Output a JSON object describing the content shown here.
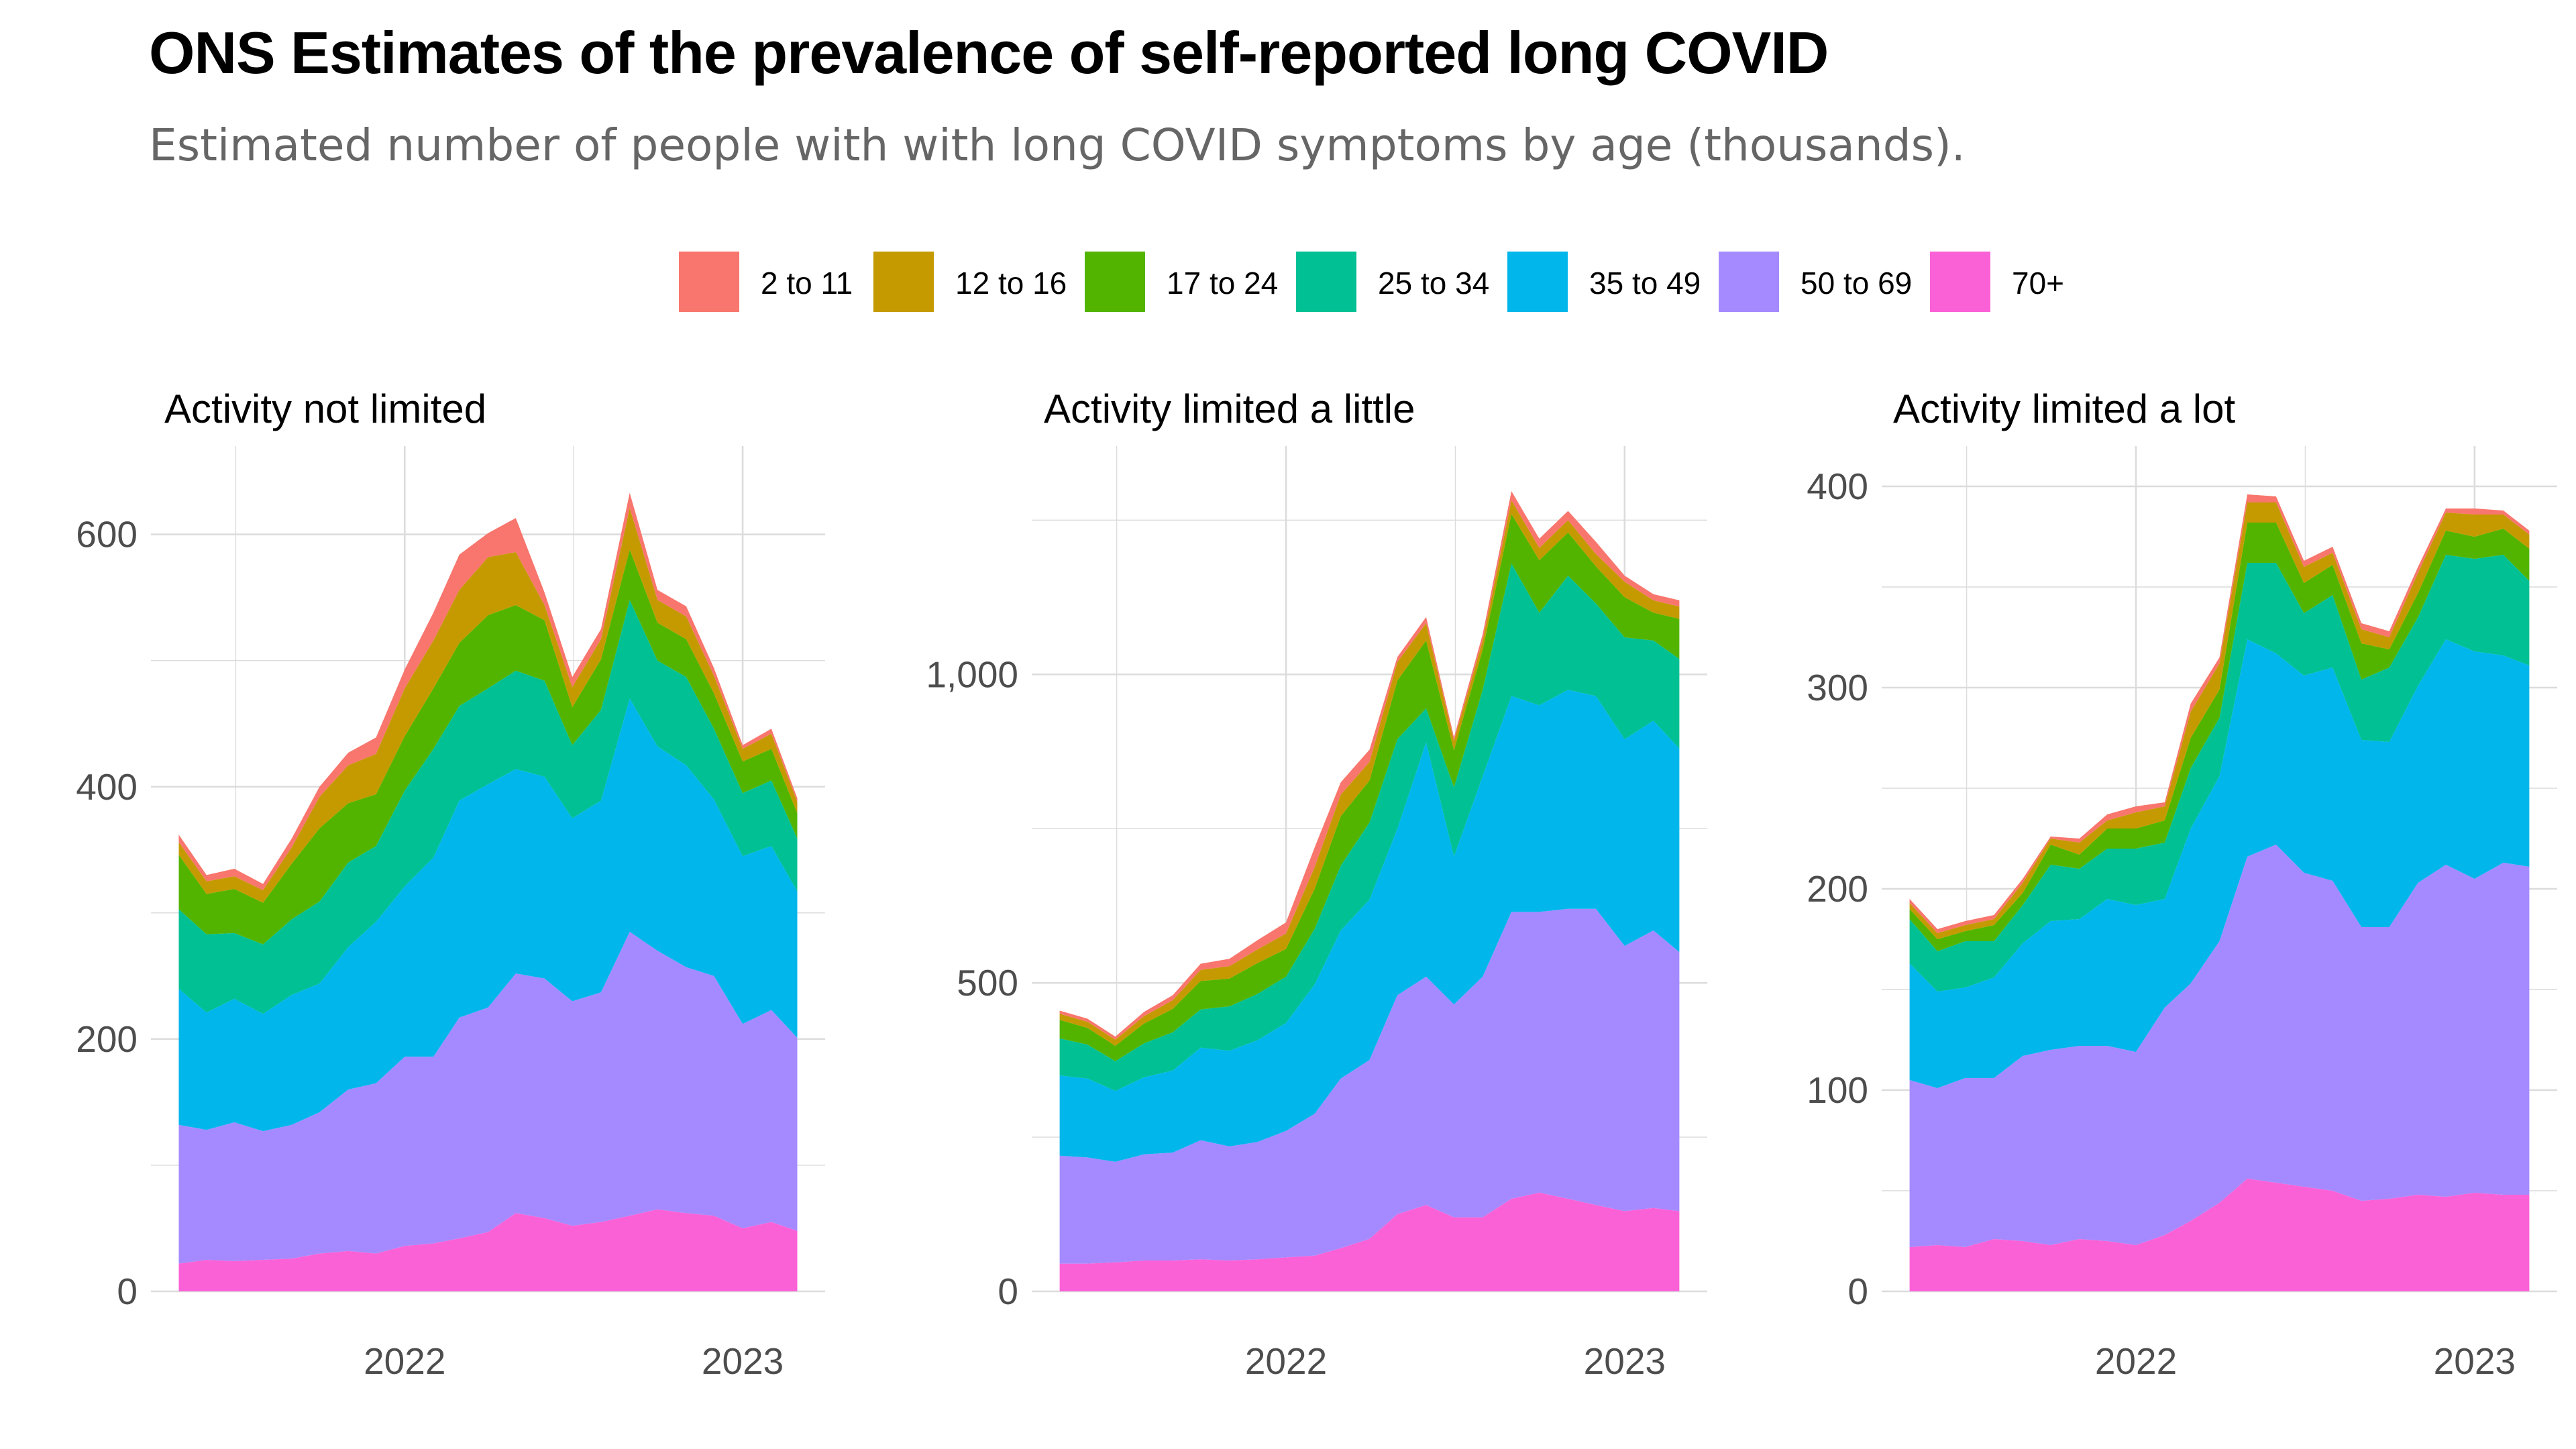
{
  "title": "ONS Estimates of the prevalence of self-reported long COVID",
  "subtitle": "Estimated number of people with with long COVID symptoms by age (thousands).",
  "legend": {
    "position": "top",
    "items": [
      {
        "label": "2 to 11",
        "color": "#F8766D"
      },
      {
        "label": "12 to 16",
        "color": "#C49A00"
      },
      {
        "label": "17 to 24",
        "color": "#53B400"
      },
      {
        "label": "25 to 34",
        "color": "#00C094"
      },
      {
        "label": "35 to 49",
        "color": "#00B6EB"
      },
      {
        "label": "50 to 69",
        "color": "#A58AFF"
      },
      {
        "label": "70+",
        "color": "#FB61D7"
      }
    ]
  },
  "chart_data": [
    {
      "type": "area",
      "stacked": true,
      "title": "Activity not limited",
      "x": [
        "2021-05-02",
        "2021-06-01",
        "2021-07-01",
        "2021-08-01",
        "2021-09-01",
        "2021-10-01",
        "2021-11-01",
        "2021-12-01",
        "2022-01-01",
        "2022-02-01",
        "2022-03-01",
        "2022-04-01",
        "2022-05-01",
        "2022-06-01",
        "2022-07-01",
        "2022-08-01",
        "2022-09-01",
        "2022-10-01",
        "2022-11-01",
        "2022-12-01",
        "2023-01-01",
        "2023-02-01",
        "2023-03-01"
      ],
      "xticks": [
        "2022",
        "2023"
      ],
      "ylim": [
        0,
        670
      ],
      "yticks": [
        "0",
        "200",
        "400",
        "600"
      ],
      "grid": true,
      "series": [
        {
          "name": "70+",
          "values": [
            22,
            25,
            24,
            25,
            26,
            30,
            32,
            30,
            36,
            38,
            42,
            47,
            62,
            58,
            52,
            55,
            60,
            65,
            62,
            60,
            50,
            55,
            48
          ]
        },
        {
          "name": "50 to 69",
          "values": [
            110,
            103,
            110,
            102,
            106,
            112,
            128,
            135,
            150,
            148,
            175,
            178,
            190,
            190,
            178,
            182,
            225,
            205,
            195,
            190,
            162,
            168,
            153
          ]
        },
        {
          "name": "35 to 49",
          "values": [
            108,
            93,
            98,
            93,
            103,
            102,
            113,
            128,
            135,
            158,
            172,
            177,
            162,
            160,
            145,
            152,
            185,
            162,
            160,
            140,
            133,
            130,
            116
          ]
        },
        {
          "name": "25 to 34",
          "values": [
            63,
            62,
            52,
            55,
            60,
            65,
            67,
            60,
            76,
            86,
            75,
            76,
            78,
            76,
            58,
            72,
            78,
            68,
            70,
            56,
            50,
            52,
            42
          ]
        },
        {
          "name": "17 to 24",
          "values": [
            43,
            32,
            35,
            33,
            44,
            58,
            47,
            41,
            43,
            48,
            50,
            58,
            52,
            48,
            30,
            40,
            40,
            30,
            30,
            28,
            25,
            25,
            20
          ]
        },
        {
          "name": "12 to 16",
          "values": [
            10,
            10,
            10,
            10,
            13,
            25,
            30,
            32,
            38,
            38,
            42,
            46,
            42,
            12,
            16,
            16,
            33,
            18,
            18,
            14,
            10,
            12,
            9
          ]
        },
        {
          "name": "2 to 11",
          "values": [
            6,
            5,
            6,
            5,
            7,
            8,
            10,
            13,
            15,
            22,
            28,
            19,
            27,
            10,
            8,
            8,
            12,
            8,
            8,
            6,
            3,
            4,
            3
          ]
        }
      ]
    },
    {
      "type": "area",
      "stacked": true,
      "title": "Activity limited a little",
      "x": [
        "2021-05-02",
        "2021-06-01",
        "2021-07-01",
        "2021-08-01",
        "2021-09-01",
        "2021-10-01",
        "2021-11-01",
        "2021-12-01",
        "2022-01-01",
        "2022-02-01",
        "2022-03-01",
        "2022-04-01",
        "2022-05-01",
        "2022-06-01",
        "2022-07-01",
        "2022-08-01",
        "2022-09-01",
        "2022-10-01",
        "2022-11-01",
        "2022-12-01",
        "2023-01-01",
        "2023-02-01",
        "2023-03-01"
      ],
      "xticks": [
        "2022",
        "2023"
      ],
      "ylim": [
        0,
        1370
      ],
      "yticks": [
        "0",
        "500",
        "1,000"
      ],
      "grid": true,
      "series": [
        {
          "name": "70+",
          "values": [
            45,
            45,
            47,
            50,
            50,
            52,
            50,
            52,
            55,
            58,
            70,
            85,
            125,
            140,
            120,
            120,
            150,
            160,
            150,
            140,
            130,
            135,
            130
          ]
        },
        {
          "name": "50 to 69",
          "values": [
            175,
            172,
            163,
            172,
            175,
            193,
            185,
            190,
            205,
            230,
            275,
            290,
            355,
            370,
            345,
            390,
            465,
            455,
            470,
            480,
            430,
            450,
            420
          ]
        },
        {
          "name": "35 to 49",
          "values": [
            130,
            128,
            115,
            125,
            133,
            150,
            155,
            165,
            175,
            210,
            240,
            260,
            270,
            380,
            240,
            325,
            350,
            335,
            355,
            345,
            335,
            340,
            330
          ]
        },
        {
          "name": "25 to 34",
          "values": [
            60,
            55,
            48,
            55,
            62,
            62,
            72,
            75,
            75,
            90,
            105,
            125,
            145,
            55,
            112,
            140,
            215,
            150,
            185,
            150,
            165,
            130,
            145
          ]
        },
        {
          "name": "17 to 24",
          "values": [
            30,
            27,
            25,
            32,
            38,
            46,
            45,
            50,
            45,
            65,
            80,
            68,
            95,
            110,
            60,
            65,
            80,
            85,
            70,
            60,
            65,
            45,
            65
          ]
        },
        {
          "name": "12 to 16",
          "values": [
            10,
            10,
            10,
            12,
            14,
            18,
            20,
            22,
            25,
            35,
            35,
            30,
            30,
            28,
            15,
            15,
            22,
            20,
            20,
            20,
            25,
            20,
            20
          ]
        },
        {
          "name": "2 to 11",
          "values": [
            5,
            5,
            5,
            7,
            8,
            10,
            12,
            15,
            18,
            32,
            20,
            20,
            8,
            10,
            6,
            10,
            15,
            15,
            15,
            20,
            10,
            10,
            10
          ]
        }
      ]
    },
    {
      "type": "area",
      "stacked": true,
      "title": "Activity limited a lot",
      "x": [
        "2021-05-02",
        "2021-06-01",
        "2021-07-01",
        "2021-08-01",
        "2021-09-01",
        "2021-10-01",
        "2021-11-01",
        "2021-12-01",
        "2022-01-01",
        "2022-02-01",
        "2022-03-01",
        "2022-04-01",
        "2022-05-01",
        "2022-06-01",
        "2022-07-01",
        "2022-08-01",
        "2022-09-01",
        "2022-10-01",
        "2022-11-01",
        "2022-12-01",
        "2023-01-01",
        "2023-02-01",
        "2023-03-01"
      ],
      "xticks": [
        "2022",
        "2023"
      ],
      "ylim": [
        0,
        420
      ],
      "yticks": [
        "0",
        "100",
        "200",
        "300",
        "400"
      ],
      "grid": true,
      "series": [
        {
          "name": "70+",
          "values": [
            22,
            23,
            22,
            26,
            25,
            23,
            26,
            25,
            23,
            28,
            35,
            44,
            56,
            54,
            52,
            50,
            45,
            46,
            48,
            47,
            49,
            48,
            48
          ]
        },
        {
          "name": "50 to 69",
          "values": [
            83,
            78,
            84,
            80,
            92,
            97,
            96,
            97,
            96,
            113,
            118,
            130,
            160,
            168,
            156,
            154,
            136,
            135,
            155,
            165,
            156,
            165,
            163
          ]
        },
        {
          "name": "35 to 49",
          "values": [
            58,
            48,
            45,
            50,
            56,
            64,
            63,
            73,
            73,
            54,
            77,
            82,
            108,
            95,
            98,
            106,
            93,
            92,
            98,
            112,
            113,
            103,
            100
          ]
        },
        {
          "name": "25 to 34",
          "values": [
            22,
            20,
            23,
            18,
            19,
            28,
            25,
            25,
            28,
            28,
            30,
            29,
            38,
            45,
            31,
            36,
            30,
            37,
            34,
            42,
            46,
            50,
            42
          ]
        },
        {
          "name": "17 to 24",
          "values": [
            5,
            6,
            5,
            8,
            6,
            10,
            7,
            10,
            10,
            11,
            15,
            14,
            20,
            20,
            15,
            15,
            18,
            9,
            12,
            12,
            11,
            13,
            16
          ]
        },
        {
          "name": "12 to 16",
          "values": [
            3,
            3,
            3,
            3,
            5,
            3,
            6,
            4,
            8,
            7,
            13,
            13,
            10,
            10,
            8,
            6,
            7,
            6,
            10,
            9,
            11,
            7,
            7
          ]
        },
        {
          "name": "2 to 11",
          "values": [
            2,
            2,
            2,
            2,
            2,
            1,
            2,
            3,
            3,
            2,
            4,
            3,
            4,
            3,
            3,
            3,
            3,
            3,
            3,
            2,
            3,
            2,
            2
          ]
        }
      ]
    }
  ]
}
